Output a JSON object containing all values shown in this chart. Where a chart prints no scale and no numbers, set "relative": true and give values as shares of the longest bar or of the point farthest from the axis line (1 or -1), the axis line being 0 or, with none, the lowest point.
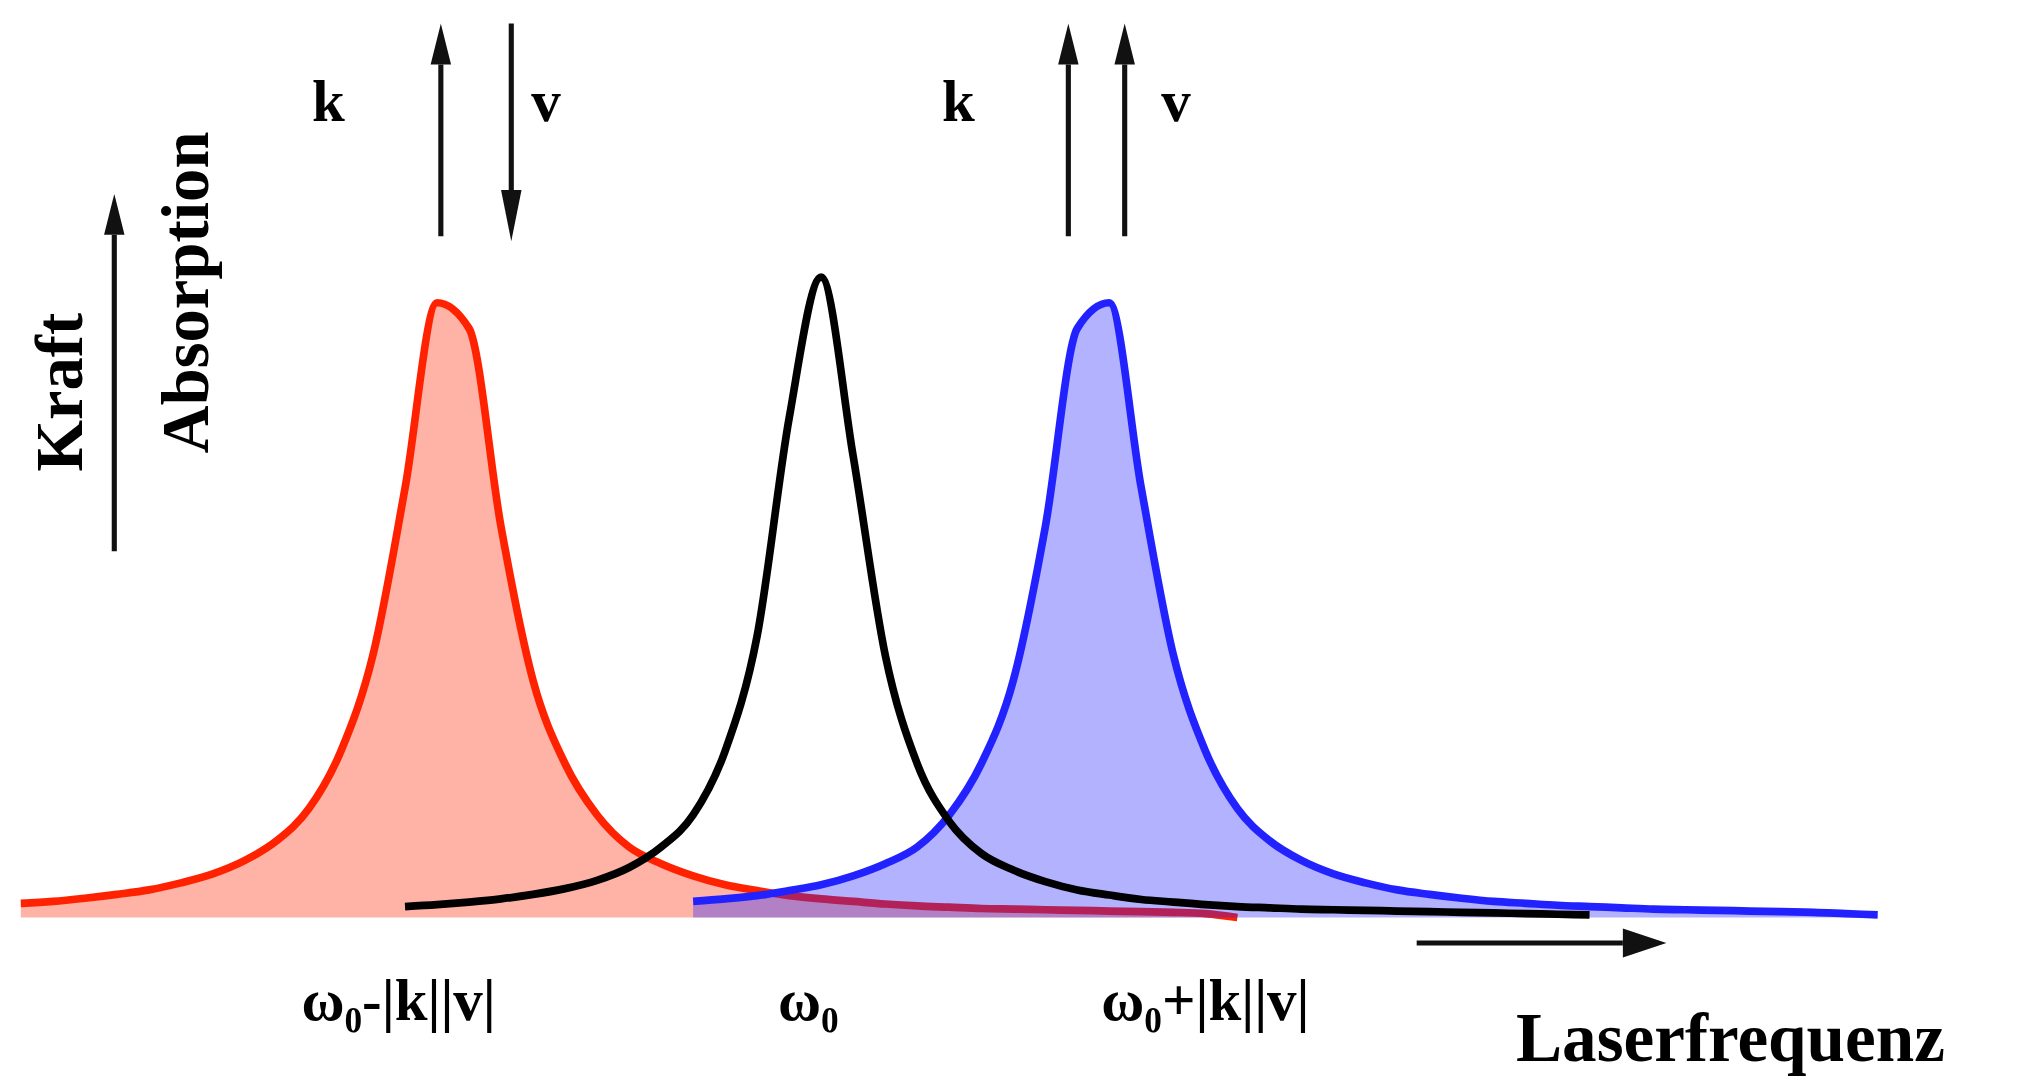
{
  "chart_data": {
    "type": "line",
    "relative": true,
    "xlabel": "Laserfrequenz",
    "ylabel": "Kraft",
    "y2label": "Absorption",
    "categories": [
      null,
      null,
      null,
      null,
      null,
      null,
      null,
      null,
      null,
      null,
      null,
      null,
      null,
      null,
      null,
      null,
      null,
      null,
      null,
      null,
      null,
      null,
      null,
      null,
      null,
      null,
      null,
      null,
      null,
      null,
      null,
      null,
      null,
      null,
      null,
      null,
      null,
      null,
      null,
      null,
      null,
      null,
      null,
      null,
      null,
      null,
      null,
      null,
      null,
      null,
      null,
      null,
      null,
      null,
      null,
      null,
      null,
      null,
      null
    ],
    "annotations": [
      "k⃗",
      "v⃗",
      "k⃗",
      "v⃗",
      "ω₀-|k||v|",
      "ω₀",
      "ω₀+|k||v|"
    ],
    "series": [
      {
        "type": "area",
        "color": "#ff2200",
        "values": [
          0.022,
          0.025,
          0.03,
          0.036,
          0.043,
          0.054,
          0.068,
          0.089,
          0.12,
          0.17,
          0.26,
          0.41,
          0.67,
          0.96,
          0.92,
          0.61,
          0.37,
          0.24,
          0.16,
          0.11,
          0.084,
          0.065,
          0.051,
          0.042,
          0.034,
          0.029,
          0.025,
          0.021,
          0.018,
          0.016,
          0.014,
          0.013,
          0.012,
          0.011,
          0.01,
          0.009,
          0.008,
          0.006,
          0,
          null,
          null,
          null,
          null,
          null,
          null,
          null,
          null,
          null,
          null,
          null,
          null,
          null,
          null,
          null,
          null,
          null,
          null,
          null,
          null
        ]
      },
      {
        "type": "area",
        "color": "#2222ff",
        "values": [
          null,
          null,
          null,
          null,
          null,
          null,
          null,
          null,
          null,
          null,
          null,
          null,
          null,
          null,
          null,
          null,
          null,
          null,
          null,
          null,
          null,
          0.025,
          0.029,
          0.034,
          0.042,
          0.051,
          0.065,
          0.084,
          0.11,
          0.16,
          0.24,
          0.37,
          0.61,
          0.92,
          0.96,
          0.67,
          0.41,
          0.26,
          0.17,
          0.12,
          0.089,
          0.068,
          0.054,
          0.043,
          0.036,
          0.03,
          0.025,
          0.022,
          0.019,
          0.017,
          0.015,
          0.013,
          0.012,
          0.011,
          0.01,
          0.009,
          0.008,
          0.006,
          0.004
        ]
      },
      {
        "color": "#000000",
        "values": [
          null,
          null,
          null,
          null,
          null,
          null,
          null,
          null,
          null,
          null,
          null,
          null,
          0.017,
          0.02,
          0.024,
          0.029,
          0.036,
          0.045,
          0.058,
          0.078,
          0.11,
          0.16,
          0.26,
          0.44,
          0.78,
          1,
          0.72,
          0.41,
          0.24,
          0.15,
          0.1,
          0.074,
          0.056,
          0.043,
          0.035,
          0.028,
          0.024,
          0.02,
          0.017,
          0.015,
          0.013,
          0.012,
          0.011,
          0.01,
          0.009,
          0.008,
          0.007,
          0.006,
          0.005,
          0.004,
          null,
          null,
          null,
          null,
          null,
          null,
          null,
          null,
          null
        ]
      }
    ]
  }
}
